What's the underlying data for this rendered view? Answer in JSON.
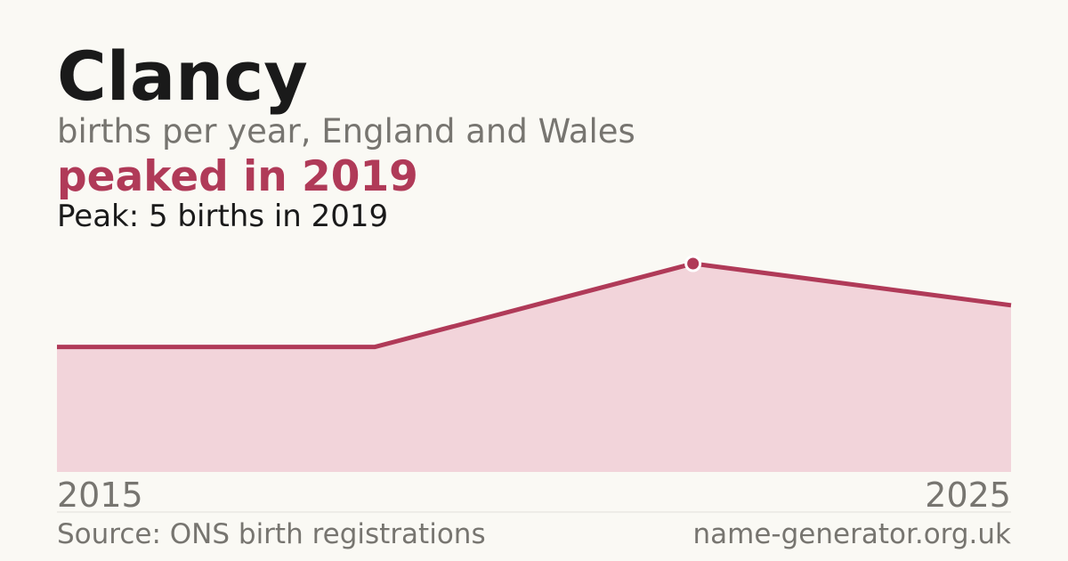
{
  "chart_data": {
    "type": "area",
    "title": "Clancy",
    "subtitle": "births per year, England and Wales",
    "headline": "peaked in 2019",
    "annotation": "Peak: 5 births in 2019",
    "categories": [
      "2015",
      null,
      null,
      "2025"
    ],
    "values": [
      3,
      3,
      5,
      4
    ],
    "color": "#b03a58",
    "area_color": "#f2d4da",
    "peak_index": 2,
    "ylim": [
      0,
      5
    ],
    "source": "Source: ONS birth registrations",
    "credit": "name-generator.org.uk"
  }
}
